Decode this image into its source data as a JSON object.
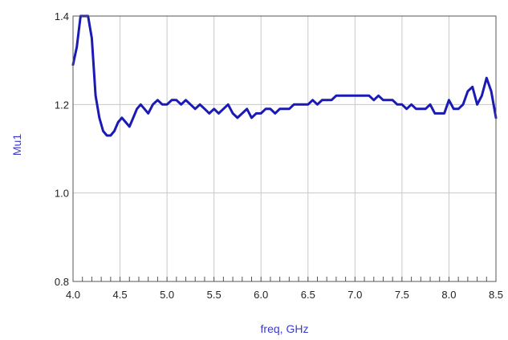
{
  "chart_data": {
    "type": "line",
    "title": "",
    "xlabel": "freq, GHz",
    "ylabel": "Mu1",
    "xlim": [
      4.0,
      8.5
    ],
    "ylim": [
      0.8,
      1.4
    ],
    "x_ticks": [
      4.0,
      4.5,
      5.0,
      5.5,
      6.0,
      6.5,
      7.0,
      7.5,
      8.0,
      8.5
    ],
    "x_tick_labels": [
      "4.0",
      "4.5",
      "5.0",
      "5.5",
      "6.0",
      "6.5",
      "7.0",
      "7.5",
      "8.0",
      "8.5"
    ],
    "y_ticks": [
      0.8,
      1.0,
      1.2,
      1.4
    ],
    "y_tick_labels": [
      "0.8",
      "1.0",
      "1.2",
      "1.4"
    ],
    "grid": true,
    "colors": {
      "series": "#1a1ab4",
      "axis_label": "#3a3acc",
      "grid": "#c8c8c8",
      "frame": "#555555"
    },
    "series": [
      {
        "x": [
          4.0,
          4.04,
          4.08,
          4.12,
          4.16,
          4.2,
          4.24,
          4.28,
          4.32,
          4.36,
          4.4,
          4.44,
          4.48,
          4.52,
          4.56,
          4.6,
          4.64,
          4.68,
          4.72,
          4.76,
          4.8,
          4.85,
          4.9,
          4.95,
          5.0,
          5.05,
          5.1,
          5.15,
          5.2,
          5.25,
          5.3,
          5.35,
          5.4,
          5.45,
          5.5,
          5.55,
          5.6,
          5.65,
          5.7,
          5.75,
          5.8,
          5.85,
          5.9,
          5.95,
          6.0,
          6.05,
          6.1,
          6.15,
          6.2,
          6.25,
          6.3,
          6.35,
          6.4,
          6.45,
          6.5,
          6.55,
          6.6,
          6.65,
          6.7,
          6.75,
          6.8,
          6.85,
          6.9,
          6.95,
          7.0,
          7.05,
          7.1,
          7.15,
          7.2,
          7.25,
          7.3,
          7.35,
          7.4,
          7.45,
          7.5,
          7.55,
          7.6,
          7.65,
          7.7,
          7.75,
          7.8,
          7.85,
          7.9,
          7.95,
          8.0,
          8.05,
          8.1,
          8.15,
          8.2,
          8.25,
          8.3,
          8.35,
          8.4,
          8.45,
          8.5
        ],
        "y": [
          1.29,
          1.33,
          1.4,
          1.4,
          1.4,
          1.35,
          1.22,
          1.17,
          1.14,
          1.13,
          1.13,
          1.14,
          1.16,
          1.17,
          1.16,
          1.15,
          1.17,
          1.19,
          1.2,
          1.19,
          1.18,
          1.2,
          1.21,
          1.2,
          1.2,
          1.21,
          1.21,
          1.2,
          1.21,
          1.2,
          1.19,
          1.2,
          1.19,
          1.18,
          1.19,
          1.18,
          1.19,
          1.2,
          1.18,
          1.17,
          1.18,
          1.19,
          1.17,
          1.18,
          1.18,
          1.19,
          1.19,
          1.18,
          1.19,
          1.19,
          1.19,
          1.2,
          1.2,
          1.2,
          1.2,
          1.21,
          1.2,
          1.21,
          1.21,
          1.21,
          1.22,
          1.22,
          1.22,
          1.22,
          1.22,
          1.22,
          1.22,
          1.22,
          1.21,
          1.22,
          1.21,
          1.21,
          1.21,
          1.2,
          1.2,
          1.19,
          1.2,
          1.19,
          1.19,
          1.19,
          1.2,
          1.18,
          1.18,
          1.18,
          1.21,
          1.19,
          1.19,
          1.2,
          1.23,
          1.24,
          1.2,
          1.22,
          1.26,
          1.23,
          1.17
        ]
      }
    ]
  }
}
